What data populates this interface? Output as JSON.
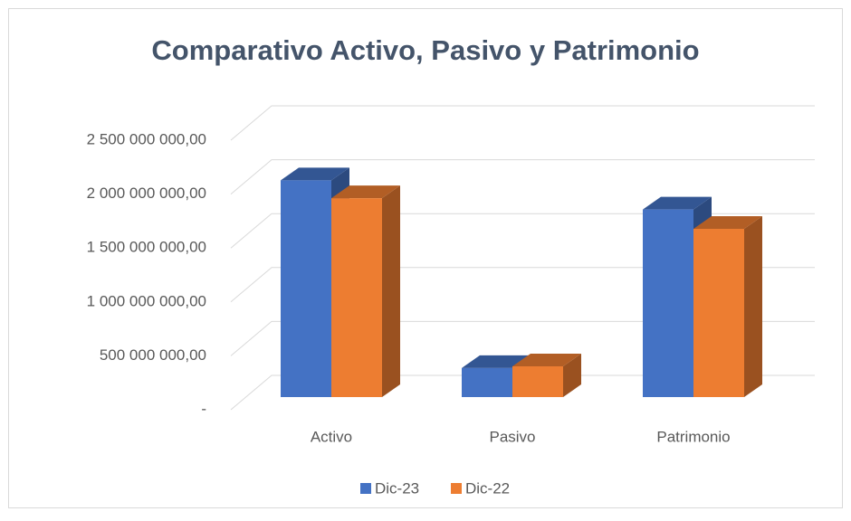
{
  "chart_data": {
    "type": "bar3d",
    "title": "Comparativo Activo, Pasivo y Patrimonio",
    "categories": [
      "Activo",
      "Pasivo",
      "Patrimonio"
    ],
    "series": [
      {
        "name": "Dic-23",
        "color": "#4472c4",
        "values": [
          2010000000,
          270000000,
          1740000000
        ]
      },
      {
        "name": "Dic-22",
        "color": "#ed7d31",
        "values": [
          1845000000,
          285000000,
          1560000000
        ]
      }
    ],
    "ylim": [
      0,
      2500000000
    ],
    "yticks": [
      {
        "value": 0,
        "label": "-"
      },
      {
        "value": 500000000,
        "label": "500 000 000,00"
      },
      {
        "value": 1000000000,
        "label": "1 000 000 000,00"
      },
      {
        "value": 1500000000,
        "label": "1 500 000 000,00"
      },
      {
        "value": 2000000000,
        "label": "2 000 000 000,00"
      },
      {
        "value": 2500000000,
        "label": "2 500 000 000,00"
      }
    ],
    "grid": true,
    "legend": "bottom"
  }
}
